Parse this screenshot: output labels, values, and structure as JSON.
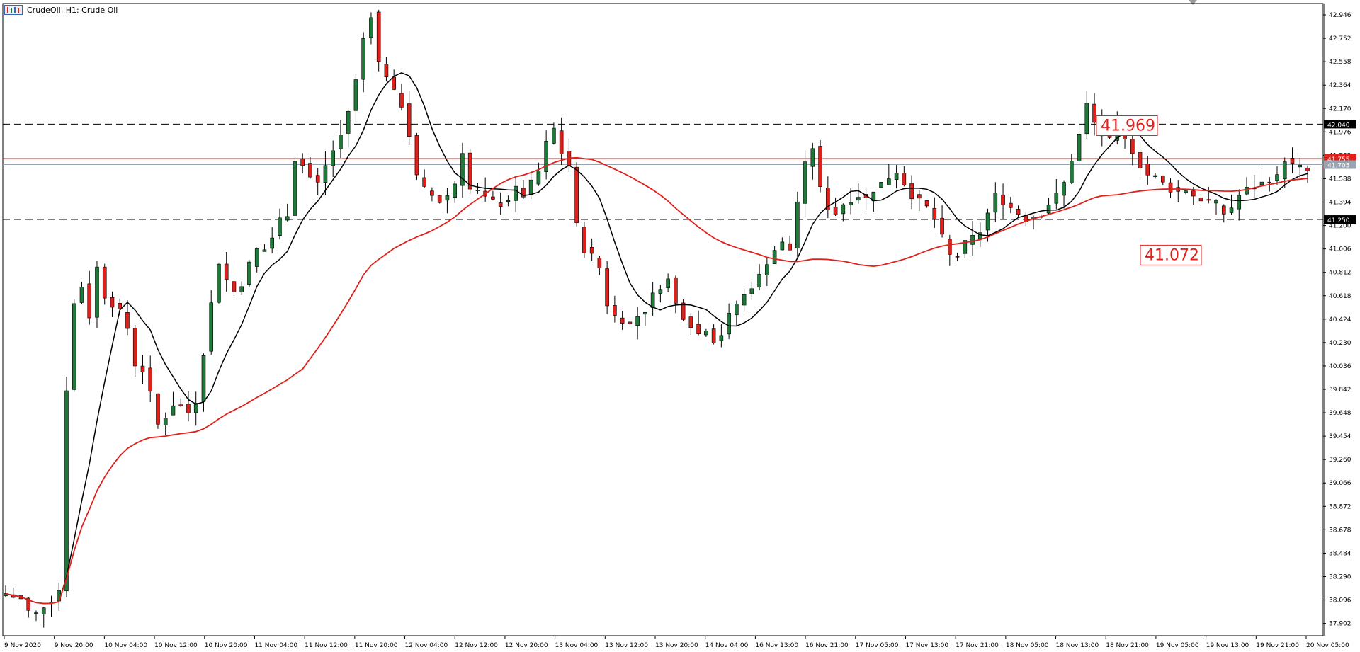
{
  "window": {
    "title": "CrudeOil, H1:  Crude Oil"
  },
  "colors": {
    "bull": "#1f7a3a",
    "bear": "#e0201b",
    "wick": "#000000",
    "ma_fast": "#000000",
    "ma_slow": "#e0201b",
    "hline_dash": "#000000",
    "hline_current": "#e0201b",
    "hline_bid": "#9aa3b0",
    "axis": "#000000"
  },
  "icons": {
    "app": "chart-window-icon",
    "scroll": "scroll-marker-icon"
  },
  "chart_data": {
    "type": "candlestick",
    "symbol": "CrudeOil",
    "timeframe": "H1",
    "ylim": [
      37.8,
      43.04
    ],
    "y_ticks": [
      "42.946",
      "42.752",
      "42.558",
      "42.364",
      "42.170",
      "41.976",
      "41.782",
      "41.588",
      "41.394",
      "41.200",
      "41.006",
      "40.812",
      "40.618",
      "40.424",
      "40.230",
      "40.036",
      "39.842",
      "39.648",
      "39.454",
      "39.260",
      "39.066",
      "38.872",
      "38.678",
      "38.484",
      "38.290",
      "38.096",
      "37.902"
    ],
    "x_tick_labels": [
      "9 Nov 2020",
      "9 Nov 20:00",
      "10 Nov 04:00",
      "10 Nov 12:00",
      "10 Nov 20:00",
      "11 Nov 04:00",
      "11 Nov 12:00",
      "11 Nov 20:00",
      "12 Nov 04:00",
      "12 Nov 12:00",
      "12 Nov 20:00",
      "13 Nov 04:00",
      "13 Nov 12:00",
      "13 Nov 20:00",
      "14 Nov 04:00",
      "16 Nov 13:00",
      "16 Nov 21:00",
      "17 Nov 05:00",
      "17 Nov 13:00",
      "17 Nov 21:00",
      "18 Nov 05:00",
      "18 Nov 13:00",
      "18 Nov 21:00",
      "19 Nov 05:00",
      "19 Nov 13:00",
      "19 Nov 21:00",
      "20 Nov 05:00"
    ],
    "horizontal_lines": [
      {
        "price": 42.04,
        "label": "42.040",
        "style": "dashed"
      },
      {
        "price": 41.25,
        "label": "41.250",
        "style": "dashed"
      },
      {
        "price": 41.755,
        "label": "41.755",
        "style": "solid-red"
      },
      {
        "price": 41.705,
        "label": "41.705",
        "style": "solid-grey"
      }
    ],
    "annotations": [
      {
        "text": "41.969",
        "price": 41.969
      },
      {
        "text": "41.072",
        "price": 41.072
      }
    ],
    "close_path": [
      38.15,
      38.12,
      38.1,
      38.0,
      37.98,
      38.05,
      38.1,
      38.18,
      39.85,
      40.55,
      40.7,
      40.45,
      40.85,
      40.62,
      40.55,
      40.48,
      40.35,
      40.05,
      40.0,
      39.8,
      39.55,
      39.62,
      39.72,
      39.7,
      39.65,
      39.75,
      40.15,
      40.55,
      40.9,
      40.75,
      40.65,
      40.72,
      40.88,
      41.0,
      41.0,
      41.1,
      41.25,
      41.3,
      41.75,
      41.7,
      41.6,
      41.55,
      41.7,
      41.82,
      41.95,
      42.15,
      42.4,
      42.75,
      42.95,
      42.55,
      42.45,
      42.3,
      42.2,
      41.95,
      41.6,
      41.5,
      41.45,
      41.4,
      41.45,
      41.55,
      41.82,
      41.5,
      41.48,
      41.42,
      41.4,
      41.38,
      41.42,
      41.5,
      41.45,
      41.55,
      41.65,
      41.88,
      42.0,
      41.8,
      41.7,
      41.2,
      41.0,
      40.95,
      40.85,
      40.55,
      40.45,
      40.42,
      40.38,
      40.45,
      40.5,
      40.62,
      40.7,
      40.75,
      40.55,
      40.45,
      40.38,
      40.3,
      40.35,
      40.25,
      40.3,
      40.45,
      40.55,
      40.62,
      40.7,
      40.78,
      40.9,
      41.0,
      41.05,
      41.0,
      41.4,
      41.7,
      41.85,
      41.5,
      41.35,
      41.3,
      41.38,
      41.42,
      41.45,
      41.42,
      41.5,
      41.55,
      41.6,
      41.65,
      41.55,
      41.45,
      41.4,
      41.35,
      41.25,
      41.1,
      40.95,
      40.95,
      41.05,
      41.1,
      41.15,
      41.3,
      41.45,
      41.4,
      41.35,
      41.3,
      41.25,
      41.28,
      41.3,
      41.38,
      41.45,
      41.55,
      41.75,
      41.95,
      42.2,
      42.05,
      41.95,
      41.9,
      42.0,
      41.9,
      41.82,
      41.7,
      41.62,
      41.6,
      41.55,
      41.5,
      41.48,
      41.5,
      41.45,
      41.42,
      41.4,
      41.38,
      41.3,
      41.35,
      41.45,
      41.5,
      41.52,
      41.55,
      41.58,
      41.6,
      41.75,
      41.7,
      41.68,
      41.65
    ],
    "series": [
      {
        "name": "",
        "kind": "moving-average-fast",
        "color": "#000000"
      },
      {
        "name": "",
        "kind": "moving-average-slow",
        "color": "#e0201b"
      }
    ],
    "grid": false
  }
}
